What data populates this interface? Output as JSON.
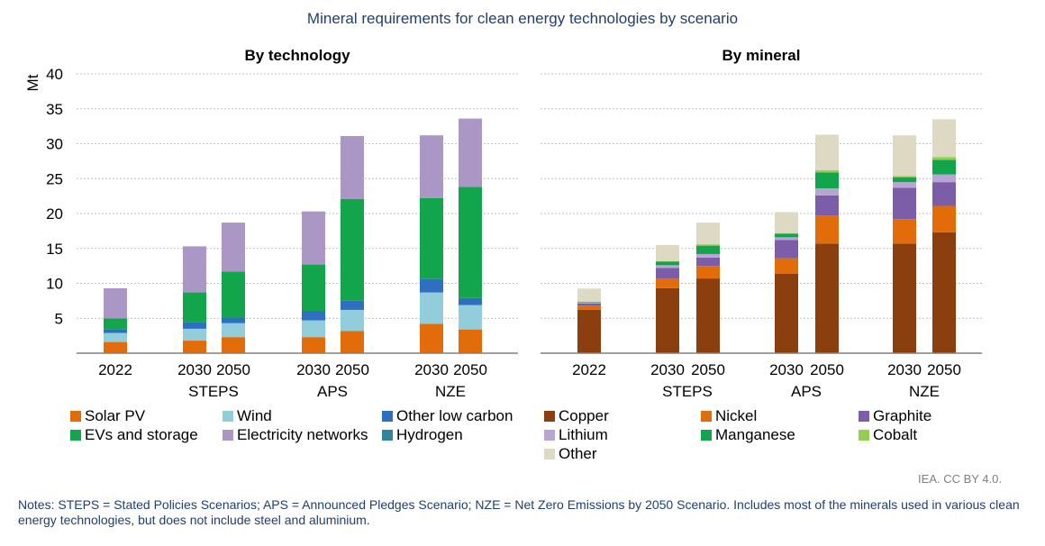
{
  "title": "Mineral requirements for clean energy technologies by scenario",
  "source": "IEA. CC BY 4.0.",
  "notes": "Notes: STEPS = Stated Policies Scenarios; APS = Announced Pledges Scenario; NZE = Net Zero Emissions by 2050 Scenario. Includes most of the minerals used in various clean energy technologies, but does not include steel and aluminium.",
  "chart_data": [
    {
      "type": "bar",
      "stacked": true,
      "title": "By technology",
      "ylabel": "Mt",
      "ylim": [
        0,
        40
      ],
      "yticks": [
        5,
        10,
        15,
        20,
        25,
        30,
        35,
        40
      ],
      "grid": true,
      "legend_position": "bottom",
      "categories": [
        "2022",
        "2030",
        "2050",
        "2030",
        "2050",
        "2030",
        "2050"
      ],
      "groups": [
        {
          "label": "",
          "categories": [
            0
          ]
        },
        {
          "label": "STEPS",
          "categories": [
            1,
            2
          ]
        },
        {
          "label": "APS",
          "categories": [
            3,
            4
          ]
        },
        {
          "label": "NZE",
          "categories": [
            5,
            6
          ]
        }
      ],
      "series": [
        {
          "name": "Solar PV",
          "color": "#e36c0a",
          "values": [
            1.6,
            1.8,
            2.3,
            2.3,
            3.2,
            4.2,
            3.4
          ]
        },
        {
          "name": "Wind",
          "color": "#92cddc",
          "values": [
            1.3,
            1.7,
            2.0,
            2.4,
            3.0,
            4.5,
            3.5
          ]
        },
        {
          "name": "Other low carbon",
          "color": "#2e6fc0",
          "values": [
            0.5,
            0.9,
            0.8,
            1.3,
            1.3,
            1.9,
            1.0
          ]
        },
        {
          "name": "Hydrogen",
          "color": "#31849b",
          "values": [
            0.0,
            0.0,
            0.0,
            0.0,
            0.0,
            0.0,
            0.0
          ]
        },
        {
          "name": "EVs and storage",
          "color": "#12a54c",
          "values": [
            1.6,
            4.3,
            6.6,
            6.7,
            14.6,
            11.6,
            15.9
          ]
        },
        {
          "name": "Electricity networks",
          "color": "#aa97c5",
          "values": [
            4.3,
            6.6,
            7.0,
            7.6,
            9.0,
            9.0,
            9.8
          ]
        }
      ],
      "legend_order": [
        "Solar PV",
        "Wind",
        "Other low carbon",
        "EVs and storage",
        "Electricity networks",
        "Hydrogen"
      ]
    },
    {
      "type": "bar",
      "stacked": true,
      "title": "By mineral",
      "ylim": [
        0,
        40
      ],
      "grid": true,
      "legend_position": "bottom",
      "categories": [
        "2022",
        "2030",
        "2050",
        "2030",
        "2050",
        "2030",
        "2050"
      ],
      "groups": [
        {
          "label": "",
          "categories": [
            0
          ]
        },
        {
          "label": "STEPS",
          "categories": [
            1,
            2
          ]
        },
        {
          "label": "APS",
          "categories": [
            3,
            4
          ]
        },
        {
          "label": "NZE",
          "categories": [
            5,
            6
          ]
        }
      ],
      "series": [
        {
          "name": "Copper",
          "color": "#8b3f0f",
          "values": [
            6.2,
            9.3,
            10.7,
            11.4,
            15.7,
            15.7,
            17.3
          ]
        },
        {
          "name": "Nickel",
          "color": "#e36c0a",
          "values": [
            0.6,
            1.4,
            1.8,
            2.2,
            4.0,
            3.5,
            3.8
          ]
        },
        {
          "name": "Graphite",
          "color": "#7b5ea7",
          "values": [
            0.3,
            1.5,
            1.2,
            2.6,
            2.9,
            4.5,
            3.4
          ]
        },
        {
          "name": "Lithium",
          "color": "#b7a5d3",
          "values": [
            0.1,
            0.4,
            0.5,
            0.4,
            1.0,
            0.8,
            1.1
          ]
        },
        {
          "name": "Manganese",
          "color": "#12a54c",
          "values": [
            0.1,
            0.5,
            1.2,
            0.5,
            2.3,
            0.7,
            2.1
          ]
        },
        {
          "name": "Cobalt",
          "color": "#92d050",
          "values": [
            0.05,
            0.1,
            0.2,
            0.1,
            0.3,
            0.2,
            0.4
          ]
        },
        {
          "name": "Other",
          "color": "#ddd9c3",
          "values": [
            1.9,
            2.3,
            3.1,
            3.0,
            5.1,
            5.8,
            5.4
          ]
        }
      ],
      "legend_order": [
        "Copper",
        "Nickel",
        "Graphite",
        "Lithium",
        "Manganese",
        "Cobalt",
        "Other"
      ]
    }
  ]
}
